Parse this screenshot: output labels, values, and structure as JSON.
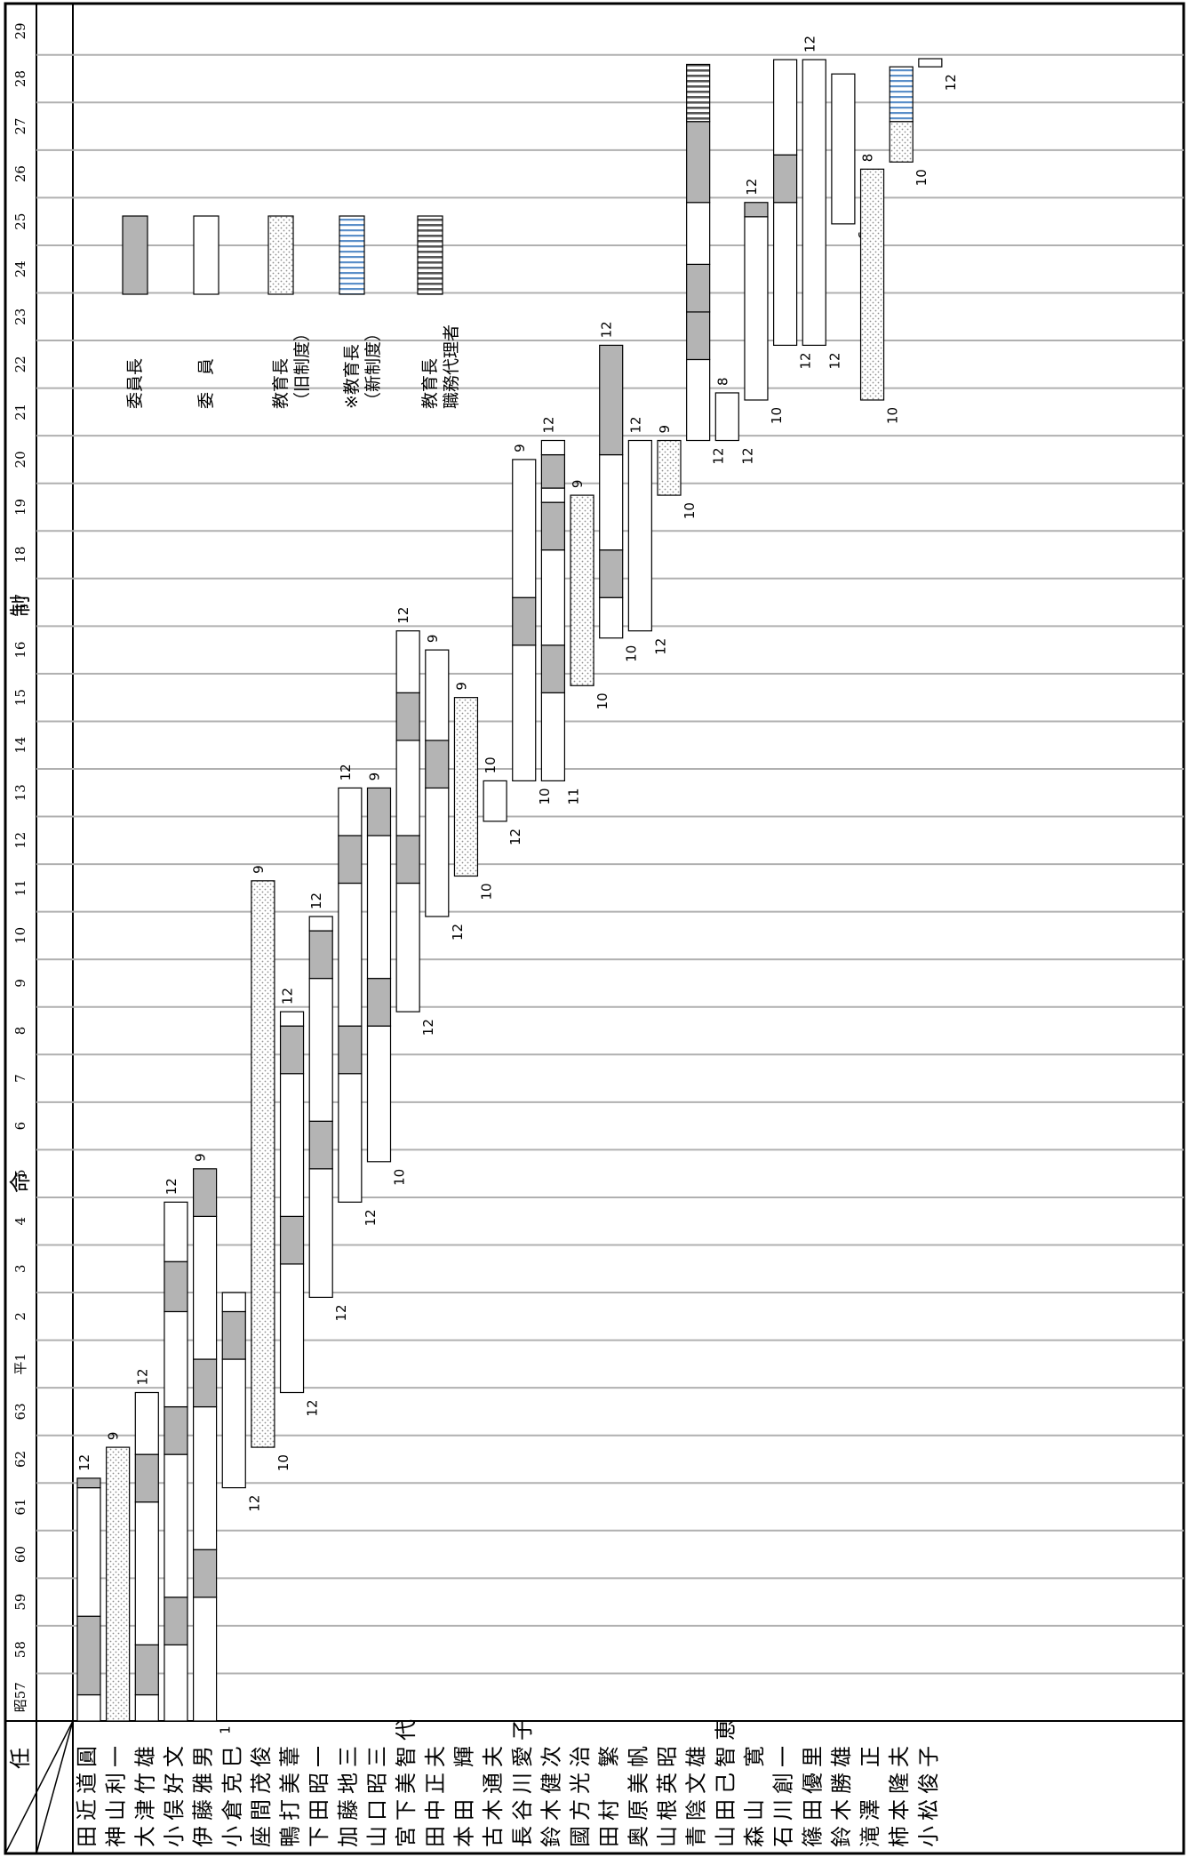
{
  "chart_data": {
    "type": "gantt",
    "title": "任　命　制",
    "corner_label": "",
    "years": [
      "昭57",
      "58",
      "59",
      "60",
      "61",
      "62",
      "63",
      "平1",
      "2",
      "3",
      "4",
      "5",
      "6",
      "7",
      "8",
      "9",
      "10",
      "11",
      "12",
      "13",
      "14",
      "15",
      "16",
      "17",
      "18",
      "19",
      "20",
      "21",
      "22",
      "23",
      "24",
      "25",
      "26",
      "27",
      "28",
      "29"
    ],
    "legend": [
      {
        "type": "chair",
        "label": "委員長"
      },
      {
        "type": "member",
        "label": "委　員"
      },
      {
        "type": "edu_old",
        "label": "教育長\n（旧制度）"
      },
      {
        "type": "edu_new",
        "label": "※教育長\n（新制度）"
      },
      {
        "type": "acting",
        "label": "教育長\n職務代理者"
      }
    ],
    "colors": {
      "chair": "#b4b4b4",
      "member": "#ffffff",
      "edu_old_dot": "#8c8c8c",
      "edu_new_stripe": "#5b8fc9",
      "acting_stripe": "#555555",
      "grid": "#b0b0b0"
    },
    "persons": [
      {
        "name": "田近道圓",
        "segments": [
          {
            "type": "member",
            "start": 0,
            "end": 0.55
          },
          {
            "type": "chair",
            "start": 0.55,
            "end": 2.2
          },
          {
            "type": "member",
            "start": 2.2,
            "end": 4.9
          },
          {
            "type": "chair",
            "start": 4.9,
            "end": 5.1
          }
        ],
        "marks": [
          {
            "text": "12",
            "side": "left",
            "at": 5.1
          }
        ]
      },
      {
        "name": "神山利一",
        "segments": [
          {
            "type": "edu_old",
            "start": 0,
            "end": 5.75
          }
        ],
        "marks": [
          {
            "text": "9",
            "side": "left",
            "at": 5.75
          }
        ]
      },
      {
        "name": "大津竹雄",
        "segments": [
          {
            "type": "member",
            "start": 0,
            "end": 0.55
          },
          {
            "type": "chair",
            "start": 0.55,
            "end": 1.6
          },
          {
            "type": "member",
            "start": 1.6,
            "end": 4.6
          },
          {
            "type": "chair",
            "start": 4.6,
            "end": 5.6
          },
          {
            "type": "member",
            "start": 5.6,
            "end": 6.9
          }
        ],
        "marks": [
          {
            "text": "12",
            "side": "left",
            "at": 6.9
          }
        ]
      },
      {
        "name": "小俣好文",
        "segments": [
          {
            "type": "member",
            "start": 0,
            "end": 1.6
          },
          {
            "type": "chair",
            "start": 1.6,
            "end": 2.6
          },
          {
            "type": "member",
            "start": 2.6,
            "end": 5.6
          },
          {
            "type": "chair",
            "start": 5.6,
            "end": 6.6
          },
          {
            "type": "member",
            "start": 6.6,
            "end": 8.6
          },
          {
            "type": "chair",
            "start": 8.6,
            "end": 9.65
          },
          {
            "type": "member",
            "start": 9.65,
            "end": 10.9
          }
        ],
        "marks": [
          {
            "text": "12",
            "side": "left",
            "at": 10.9
          }
        ]
      },
      {
        "name": "伊藤雅男",
        "segments": [
          {
            "type": "member",
            "start": 0,
            "end": 2.6
          },
          {
            "type": "chair",
            "start": 2.6,
            "end": 3.6
          },
          {
            "type": "member",
            "start": 3.6,
            "end": 6.6
          },
          {
            "type": "chair",
            "start": 6.6,
            "end": 7.6
          },
          {
            "type": "member",
            "start": 7.6,
            "end": 10.6
          },
          {
            "type": "chair",
            "start": 10.6,
            "end": 11.6
          }
        ],
        "marks": [
          {
            "text": "1",
            "side": "right",
            "at": 0.05
          },
          {
            "text": "9",
            "side": "left",
            "at": 11.6
          }
        ]
      },
      {
        "name": "小倉克巳",
        "segments": [
          {
            "type": "member",
            "start": 4.9,
            "end": 7.6
          },
          {
            "type": "chair",
            "start": 7.6,
            "end": 8.6
          },
          {
            "type": "member",
            "start": 8.6,
            "end": 9.0
          }
        ],
        "marks": [
          {
            "text": "12",
            "side": "right",
            "at": 4.9
          }
        ]
      },
      {
        "name": "座間茂俊",
        "segments": [
          {
            "type": "edu_old",
            "start": 5.75,
            "end": 17.65
          }
        ],
        "marks": [
          {
            "text": "10",
            "side": "right",
            "at": 5.75
          },
          {
            "text": "9",
            "side": "left",
            "at": 17.65
          }
        ]
      },
      {
        "name": "鴨打美葦",
        "segments": [
          {
            "type": "member",
            "start": 6.9,
            "end": 9.6
          },
          {
            "type": "chair",
            "start": 9.6,
            "end": 10.6
          },
          {
            "type": "member",
            "start": 10.6,
            "end": 13.6
          },
          {
            "type": "chair",
            "start": 13.6,
            "end": 14.6
          },
          {
            "type": "member",
            "start": 14.6,
            "end": 14.9
          }
        ],
        "marks": [
          {
            "text": "12",
            "side": "right",
            "at": 6.9
          },
          {
            "text": "12",
            "side": "left",
            "at": 14.9
          }
        ]
      },
      {
        "name": "下田昭一",
        "segments": [
          {
            "type": "member",
            "start": 8.9,
            "end": 11.6
          },
          {
            "type": "chair",
            "start": 11.6,
            "end": 12.6
          },
          {
            "type": "member",
            "start": 12.6,
            "end": 15.6
          },
          {
            "type": "chair",
            "start": 15.6,
            "end": 16.6
          },
          {
            "type": "member",
            "start": 16.6,
            "end": 16.9
          }
        ],
        "marks": [
          {
            "text": "12",
            "side": "right",
            "at": 8.9
          },
          {
            "text": "12",
            "side": "left",
            "at": 16.9
          }
        ]
      },
      {
        "name": "加藤地三",
        "segments": [
          {
            "type": "member",
            "start": 10.9,
            "end": 13.6
          },
          {
            "type": "chair",
            "start": 13.6,
            "end": 14.6
          },
          {
            "type": "member",
            "start": 14.6,
            "end": 17.6
          },
          {
            "type": "chair",
            "start": 17.6,
            "end": 18.6
          },
          {
            "type": "member",
            "start": 18.6,
            "end": 19.6
          }
        ],
        "marks": [
          {
            "text": "12",
            "side": "right",
            "at": 10.9
          },
          {
            "text": "12",
            "side": "left",
            "at": 19.6
          }
        ]
      },
      {
        "name": "山口昭三",
        "segments": [
          {
            "type": "member",
            "start": 11.75,
            "end": 14.6
          },
          {
            "type": "chair",
            "start": 14.6,
            "end": 15.6
          },
          {
            "type": "member",
            "start": 15.6,
            "end": 18.6
          },
          {
            "type": "chair",
            "start": 18.6,
            "end": 19.6
          }
        ],
        "marks": [
          {
            "text": "10",
            "side": "right",
            "at": 11.75
          },
          {
            "text": "9",
            "side": "left",
            "at": 19.6
          }
        ]
      },
      {
        "name": "宮下美智代",
        "segments": [
          {
            "type": "member",
            "start": 14.9,
            "end": 17.6
          },
          {
            "type": "chair",
            "start": 17.6,
            "end": 18.6
          },
          {
            "type": "member",
            "start": 18.6,
            "end": 20.6
          },
          {
            "type": "chair",
            "start": 20.6,
            "end": 21.6
          },
          {
            "type": "member",
            "start": 21.6,
            "end": 22.9
          }
        ],
        "marks": [
          {
            "text": "12",
            "side": "right",
            "at": 14.9
          },
          {
            "text": "12",
            "side": "left",
            "at": 22.9
          }
        ]
      },
      {
        "name": "田中正夫",
        "segments": [
          {
            "type": "member",
            "start": 16.9,
            "end": 19.6
          },
          {
            "type": "chair",
            "start": 19.6,
            "end": 20.6
          },
          {
            "type": "member",
            "start": 20.6,
            "end": 22.5
          }
        ],
        "marks": [
          {
            "text": "12",
            "side": "right",
            "at": 16.9
          },
          {
            "text": "9",
            "side": "left",
            "at": 22.5
          }
        ]
      },
      {
        "name": "本田　輝",
        "segments": [
          {
            "type": "edu_old",
            "start": 17.75,
            "end": 21.5
          }
        ],
        "marks": [
          {
            "text": "10",
            "side": "right",
            "at": 17.75
          },
          {
            "text": "9",
            "side": "left",
            "at": 21.5
          }
        ]
      },
      {
        "name": "古木通夫",
        "segments": [
          {
            "type": "member",
            "start": 18.9,
            "end": 19.75
          }
        ],
        "marks": [
          {
            "text": "12",
            "side": "right",
            "at": 18.9
          },
          {
            "text": "10",
            "side": "left",
            "at": 19.75
          }
        ]
      },
      {
        "name": "長谷川愛子",
        "segments": [
          {
            "type": "member",
            "start": 19.75,
            "end": 22.6
          },
          {
            "type": "chair",
            "start": 22.6,
            "end": 23.6
          },
          {
            "type": "member",
            "start": 23.6,
            "end": 26.5
          }
        ],
        "marks": [
          {
            "text": "10",
            "side": "right",
            "at": 19.75
          },
          {
            "text": "9",
            "side": "left",
            "at": 26.5
          }
        ]
      },
      {
        "name": "鈴木健次",
        "segments": [
          {
            "type": "member",
            "start": 19.75,
            "end": 21.6
          },
          {
            "type": "chair",
            "start": 21.6,
            "end": 22.6
          },
          {
            "type": "member",
            "start": 22.6,
            "end": 24.6
          },
          {
            "type": "chair",
            "start": 24.6,
            "end": 25.6
          },
          {
            "type": "member",
            "start": 25.6,
            "end": 25.9
          },
          {
            "type": "chair",
            "start": 25.9,
            "end": 26.6
          },
          {
            "type": "member",
            "start": 26.6,
            "end": 26.9
          }
        ],
        "marks": [
          {
            "text": "11",
            "side": "right",
            "at": 19.75
          },
          {
            "text": "12",
            "side": "left",
            "at": 26.9
          }
        ]
      },
      {
        "name": "國方光治",
        "segments": [
          {
            "type": "edu_old",
            "start": 21.75,
            "end": 25.75
          }
        ],
        "marks": [
          {
            "text": "10",
            "side": "right",
            "at": 21.75
          },
          {
            "text": "9",
            "side": "left",
            "at": 25.75
          }
        ]
      },
      {
        "name": "田村　繁",
        "segments": [
          {
            "type": "member",
            "start": 22.75,
            "end": 23.6
          },
          {
            "type": "chair",
            "start": 23.6,
            "end": 24.6
          },
          {
            "type": "member",
            "start": 24.6,
            "end": 26.6
          },
          {
            "type": "chair",
            "start": 26.6,
            "end": 28.9
          }
        ],
        "marks": [
          {
            "text": "10",
            "side": "right",
            "at": 22.75
          },
          {
            "text": "12",
            "side": "left",
            "at": 28.9
          }
        ]
      },
      {
        "name": "奥原美帆",
        "segments": [
          {
            "type": "member",
            "start": 22.9,
            "end": 26.9
          }
        ],
        "marks": [
          {
            "text": "12",
            "side": "right",
            "at": 22.9
          },
          {
            "text": "12",
            "side": "left",
            "at": 26.9
          }
        ]
      },
      {
        "name": "山根英昭",
        "segments": [
          {
            "type": "edu_old",
            "start": 25.75,
            "end": 26.9
          }
        ],
        "marks": [
          {
            "text": "10",
            "side": "right",
            "at": 25.75
          },
          {
            "text": "9",
            "side": "left",
            "at": 26.9
          }
        ]
      },
      {
        "name": "青陰文雄",
        "segments": [
          {
            "type": "member",
            "start": 26.9,
            "end": 28.6
          },
          {
            "type": "chair",
            "start": 28.6,
            "end": 29.6
          },
          {
            "type": "chair",
            "start": 29.6,
            "end": 30.6
          },
          {
            "type": "member",
            "start": 30.6,
            "end": 31.9
          },
          {
            "type": "chair",
            "start": 31.9,
            "end": 33.6
          },
          {
            "type": "acting",
            "start": 33.6,
            "end": 34.8
          }
        ],
        "marks": [
          {
            "text": "12",
            "side": "right",
            "at": 26.9
          }
        ]
      },
      {
        "name": "山田己智恵",
        "segments": [
          {
            "type": "member",
            "start": 26.9,
            "end": 27.9
          }
        ],
        "marks": [
          {
            "text": "12",
            "side": "right",
            "at": 26.9
          },
          {
            "text": "8",
            "side": "left",
            "at": 27.9
          }
        ]
      },
      {
        "name": "森山　寛",
        "segments": [
          {
            "type": "member",
            "start": 27.75,
            "end": 31.6
          },
          {
            "type": "chair",
            "start": 31.6,
            "end": 31.9
          }
        ],
        "marks": [
          {
            "text": "10",
            "side": "right",
            "at": 27.75
          },
          {
            "text": "12",
            "side": "left",
            "at": 31.9
          }
        ]
      },
      {
        "name": "石川創一",
        "segments": [
          {
            "type": "member",
            "start": 28.9,
            "end": 31.9
          },
          {
            "type": "chair",
            "start": 31.9,
            "end": 32.9
          },
          {
            "type": "member",
            "start": 32.9,
            "end": 34.9
          }
        ],
        "marks": [
          {
            "text": "12",
            "side": "right",
            "at": 28.9
          }
        ]
      },
      {
        "name": "篠田優里",
        "segments": [
          {
            "type": "member",
            "start": 28.9,
            "end": 34.9
          }
        ],
        "marks": [
          {
            "text": "12",
            "side": "right",
            "at": 28.9
          },
          {
            "text": "12",
            "side": "left",
            "at": 34.9
          }
        ]
      },
      {
        "name": "鈴木勝雄",
        "segments": [
          {
            "type": "member",
            "start": 31.45,
            "end": 34.6
          }
        ],
        "marks": [
          {
            "text": "6",
            "side": "right",
            "at": 31.45
          }
        ]
      },
      {
        "name": "滝澤　正",
        "segments": [
          {
            "type": "edu_old",
            "start": 27.75,
            "end": 32.6
          }
        ],
        "marks": [
          {
            "text": "10",
            "side": "right",
            "at": 27.75
          },
          {
            "text": "8",
            "side": "left",
            "at": 32.6
          }
        ]
      },
      {
        "name": "柿本隆夫",
        "segments": [
          {
            "type": "edu_old",
            "start": 32.75,
            "end": 33.6
          },
          {
            "type": "edu_new",
            "start": 33.6,
            "end": 34.75
          }
        ],
        "marks": [
          {
            "text": "10",
            "side": "right",
            "at": 32.75
          }
        ]
      },
      {
        "name": "小松俊子",
        "segments": [
          {
            "type": "member",
            "start": 34.75,
            "end": 34.92
          }
        ],
        "marks": [
          {
            "text": "12",
            "side": "right",
            "at": 34.75
          }
        ]
      }
    ]
  }
}
